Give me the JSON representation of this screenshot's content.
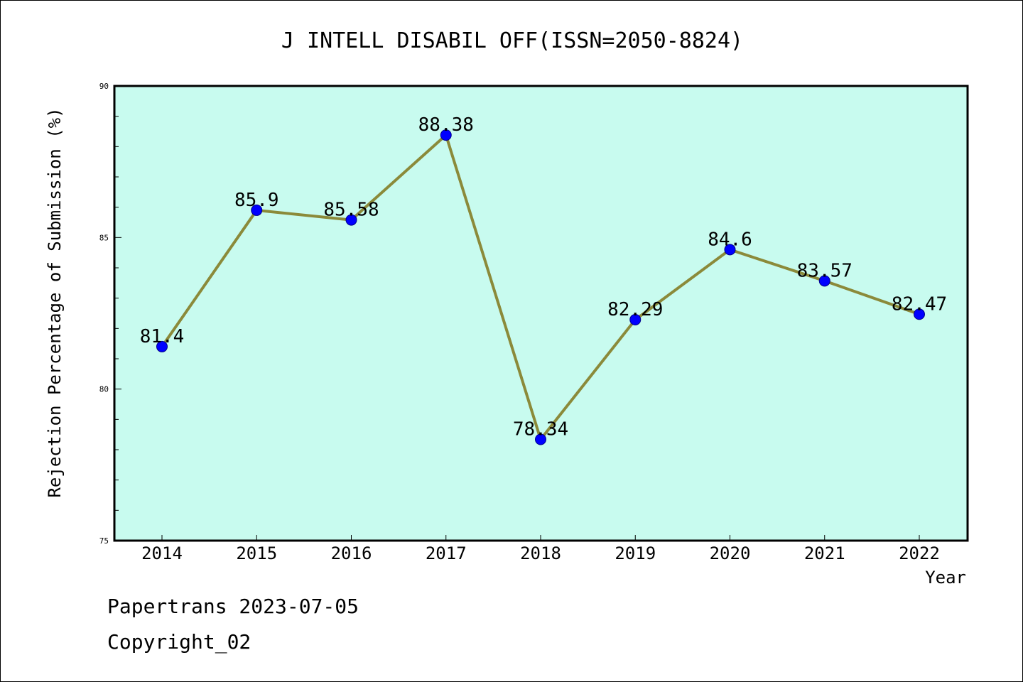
{
  "chart_data": {
    "type": "line",
    "title": "J INTELL DISABIL OFF(ISSN=2050-8824)",
    "xlabel": "Year",
    "ylabel": "Rejection Percentage of Submission (%)",
    "categories": [
      "2014",
      "2015",
      "2016",
      "2017",
      "2018",
      "2019",
      "2020",
      "2021",
      "2022"
    ],
    "series": [
      {
        "values": [
          81.4,
          85.9,
          85.58,
          88.38,
          78.34,
          82.29,
          84.6,
          83.57,
          82.47
        ],
        "data_labels": [
          "81.4",
          "85.9",
          "85.58",
          "88.38",
          "78.34",
          "82.29",
          "84.6",
          "83.57",
          "82.47"
        ]
      }
    ],
    "ylim": [
      75,
      90
    ],
    "yticks": [
      75,
      80,
      85,
      90
    ],
    "yminor_step": 1,
    "grid": false,
    "legend": "none",
    "colors": {
      "plot_background": "#c8fbef",
      "line": "#8b8a3a",
      "marker": "#0000ff",
      "axis": "#000000"
    }
  },
  "footer": {
    "line1": "Papertrans 2023-07-05",
    "line2": "Copyright_02"
  }
}
